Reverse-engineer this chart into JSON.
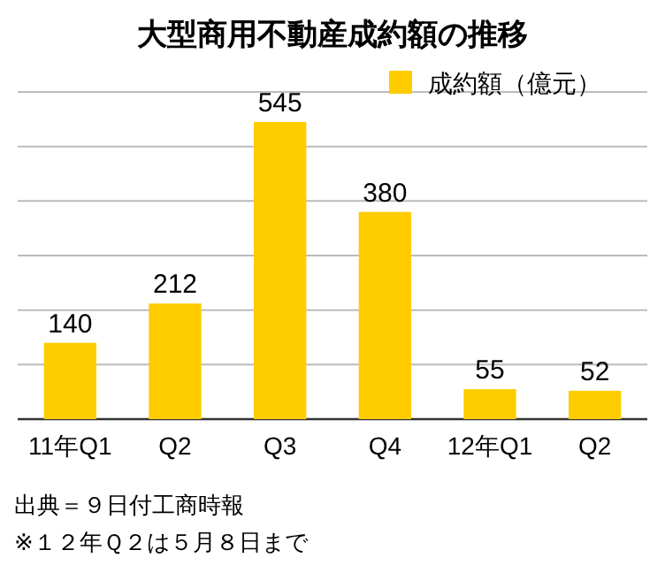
{
  "chart_data": {
    "type": "bar",
    "title": "大型商用不動産成約額の推移",
    "categories": [
      "11年Q1",
      "Q2",
      "Q3",
      "Q4",
      "12年Q1",
      "Q2"
    ],
    "series": [
      {
        "name": "成約額（億元）",
        "color": "#ffcc00",
        "values": [
          140,
          212,
          545,
          380,
          55,
          52
        ]
      }
    ],
    "data_labels": true,
    "ylim": [
      0,
      600
    ],
    "yticks": [
      {
        "value": 0,
        "label": null
      },
      {
        "value": 100,
        "label": null
      },
      {
        "value": 200,
        "label": null
      },
      {
        "value": 300,
        "label": null
      },
      {
        "value": 400,
        "label": null
      },
      {
        "value": 500,
        "label": null
      },
      {
        "value": 600,
        "label": null
      }
    ],
    "grid": "y",
    "legend": "top right",
    "tick_labels": "x",
    "annotations": [
      "出典＝９日付工商時報",
      "※１２年Ｑ２は５月８日まで"
    ]
  }
}
